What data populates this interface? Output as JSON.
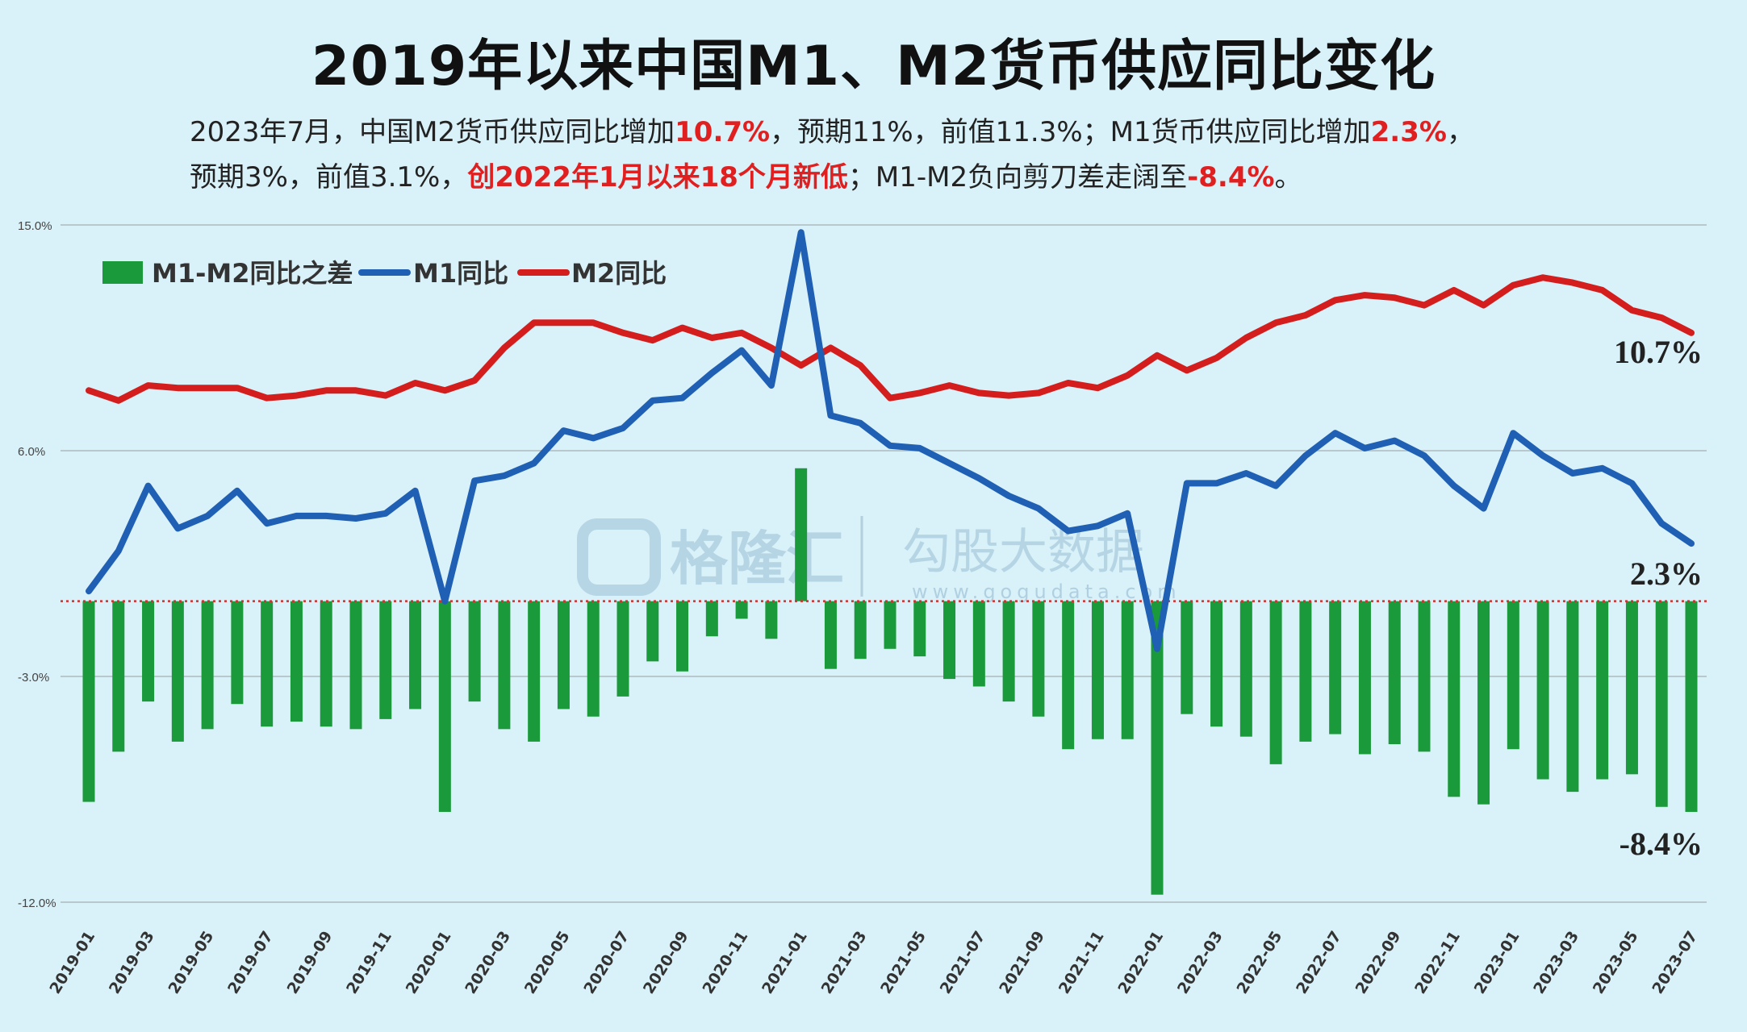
{
  "title": "2019年以来中国M1、M2货币供应同比变化",
  "subtitle": {
    "line1": [
      {
        "text": "2023年7月，中国M2货币供应同比增加",
        "red": false
      },
      {
        "text": "10.7%",
        "red": true
      },
      {
        "text": "，预期11%，前值11.3%；M1货币供应同比增加",
        "red": false
      },
      {
        "text": "2.3%",
        "red": true
      },
      {
        "text": "，",
        "red": false
      }
    ],
    "line2": [
      {
        "text": "预期3%，前值3.1%，",
        "red": false
      },
      {
        "text": "创2022年1月以来18个月新低",
        "red": true
      },
      {
        "text": "；M1-M2负向剪刀差走阔至",
        "red": false
      },
      {
        "text": "-8.4%",
        "red": true
      },
      {
        "text": "。",
        "red": false
      }
    ]
  },
  "watermark": {
    "brand1": "格隆汇",
    "brand2": "勾股大数据",
    "url": "www.gogudata.com"
  },
  "colors": {
    "m1": "#1f5fb4",
    "m2": "#d41e1e",
    "diff": "#1a9a3a",
    "zero_line": "#d03030",
    "grid": "#b8c8cc",
    "background": "#d9f1f8"
  },
  "chart_data": {
    "type": "bar+line",
    "title": "2019年以来中国M1、M2货币供应同比变化",
    "ylim": [
      -12,
      15
    ],
    "yticks": [
      15,
      6,
      -3,
      -12
    ],
    "ytick_labels": [
      "15.0%",
      "6.0%",
      "-3.0%",
      "-12.0%"
    ],
    "grid": true,
    "legend_placement": "top-left",
    "categories": [
      "2019-01",
      "2019-02",
      "2019-03",
      "2019-04",
      "2019-05",
      "2019-06",
      "2019-07",
      "2019-08",
      "2019-09",
      "2019-10",
      "2019-11",
      "2019-12",
      "2020-01",
      "2020-02",
      "2020-03",
      "2020-04",
      "2020-05",
      "2020-06",
      "2020-07",
      "2020-08",
      "2020-09",
      "2020-10",
      "2020-11",
      "2020-12",
      "2021-01",
      "2021-02",
      "2021-03",
      "2021-04",
      "2021-05",
      "2021-06",
      "2021-07",
      "2021-08",
      "2021-09",
      "2021-10",
      "2021-11",
      "2021-12",
      "2022-01",
      "2022-02",
      "2022-03",
      "2022-04",
      "2022-05",
      "2022-06",
      "2022-07",
      "2022-08",
      "2022-09",
      "2022-10",
      "2022-11",
      "2022-12",
      "2023-01",
      "2023-02",
      "2023-03",
      "2023-04",
      "2023-05",
      "2023-06",
      "2023-07"
    ],
    "xtick_labels": [
      "2019-01",
      "2019-03",
      "2019-05",
      "2019-07",
      "2019-09",
      "2019-11",
      "2020-01",
      "2020-03",
      "2020-05",
      "2020-07",
      "2020-09",
      "2020-11",
      "2021-01",
      "2021-03",
      "2021-05",
      "2021-07",
      "2021-09",
      "2021-11",
      "2022-01",
      "2022-03",
      "2022-05",
      "2022-07",
      "2022-09",
      "2022-11",
      "2023-01",
      "2023-03",
      "2023-05",
      "2023-07"
    ],
    "series": [
      {
        "name": "M1-M2同比之差",
        "type": "bar",
        "values": [
          -8.0,
          -6.0,
          -4.0,
          -5.6,
          -5.1,
          -4.1,
          -5.0,
          -4.8,
          -5.0,
          -5.1,
          -4.7,
          -4.3,
          -8.4,
          -4.0,
          -5.1,
          -5.6,
          -4.3,
          -4.6,
          -3.8,
          -2.4,
          -2.8,
          -1.4,
          -0.7,
          -1.5,
          5.3,
          -2.7,
          -2.3,
          -1.9,
          -2.2,
          -3.1,
          -3.4,
          -4.0,
          -4.6,
          -5.9,
          -5.5,
          -5.5,
          -11.7,
          -4.5,
          -5.0,
          -5.4,
          -6.5,
          -5.6,
          -5.3,
          -6.1,
          -5.7,
          -6.0,
          -7.8,
          -8.1,
          -5.9,
          -7.1,
          -7.6,
          -7.1,
          -6.9,
          -8.2,
          -8.4
        ]
      },
      {
        "name": "M1同比",
        "type": "line",
        "values": [
          0.4,
          2.0,
          4.6,
          2.9,
          3.4,
          4.4,
          3.1,
          3.4,
          3.4,
          3.3,
          3.5,
          4.4,
          0.0,
          4.8,
          5.0,
          5.5,
          6.8,
          6.5,
          6.9,
          8.0,
          8.1,
          9.1,
          10.0,
          8.6,
          14.7,
          7.4,
          7.1,
          6.2,
          6.1,
          5.5,
          4.9,
          4.2,
          3.7,
          2.8,
          3.0,
          3.5,
          -1.9,
          4.7,
          4.7,
          5.1,
          4.6,
          5.8,
          6.7,
          6.1,
          6.4,
          5.8,
          4.6,
          3.7,
          6.7,
          5.8,
          5.1,
          5.3,
          4.7,
          3.1,
          2.3
        ]
      },
      {
        "name": "M2同比",
        "type": "line",
        "values": [
          8.4,
          8.0,
          8.6,
          8.5,
          8.5,
          8.5,
          8.1,
          8.2,
          8.4,
          8.4,
          8.2,
          8.7,
          8.4,
          8.8,
          10.1,
          11.1,
          11.1,
          11.1,
          10.7,
          10.4,
          10.9,
          10.5,
          10.7,
          10.1,
          9.4,
          10.1,
          9.4,
          8.1,
          8.3,
          8.6,
          8.3,
          8.2,
          8.3,
          8.7,
          8.5,
          9.0,
          9.8,
          9.2,
          9.7,
          10.5,
          11.1,
          11.4,
          12.0,
          12.2,
          12.1,
          11.8,
          12.4,
          11.8,
          12.6,
          12.9,
          12.7,
          12.4,
          11.6,
          11.3,
          10.7
        ]
      }
    ],
    "annotations": [
      "10.7%",
      "2.3%",
      "-8.4%"
    ]
  }
}
